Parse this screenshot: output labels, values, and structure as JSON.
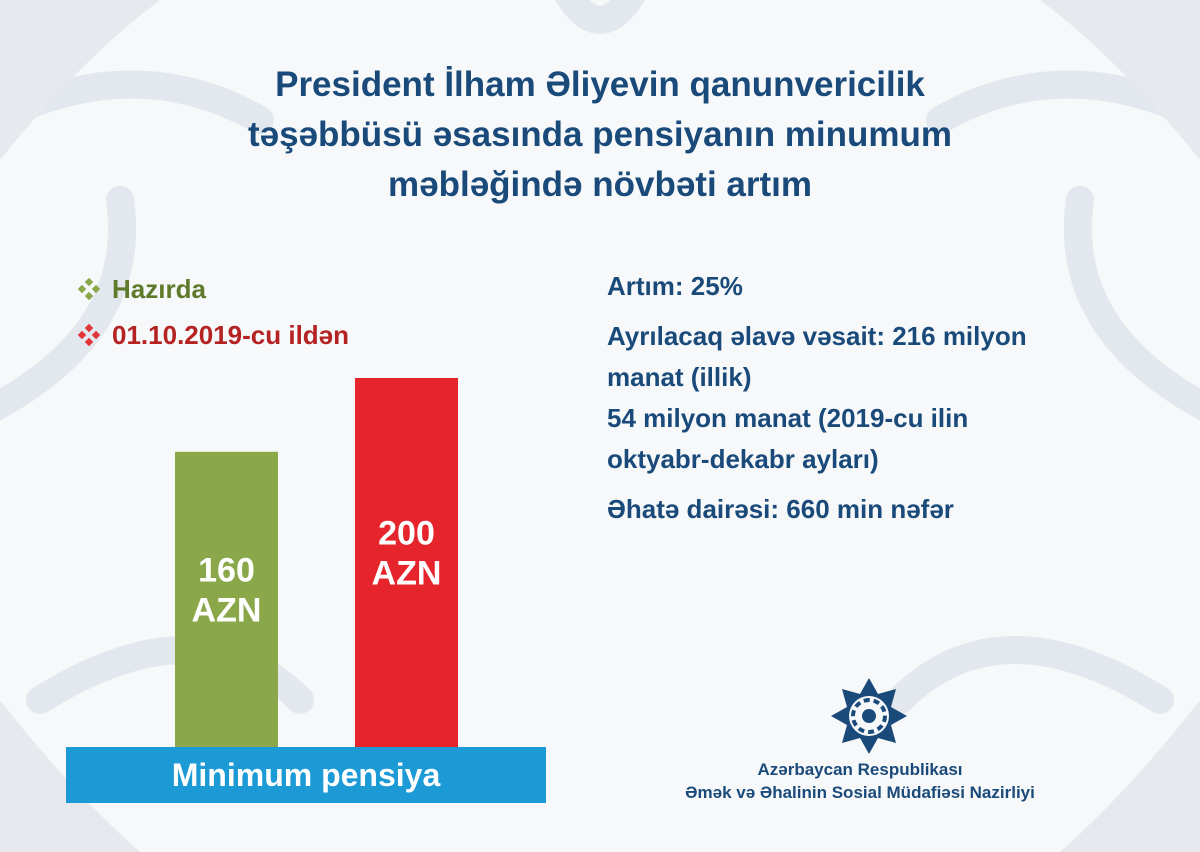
{
  "title": {
    "line1": "President İlham Əliyevin qanunvericilik",
    "line2": "təşəbbüsü  əsasında pensiyanın minumum",
    "line3": "məbləğində növbəti artım"
  },
  "legend": [
    {
      "label": "Hazırda",
      "color": "#5e7a2a",
      "bullet_color": "#8aa84a"
    },
    {
      "label": "01.10.2019-cu ildən",
      "color": "#b42222",
      "bullet_color": "#e0363a"
    }
  ],
  "chart_data": {
    "type": "bar",
    "categories": [
      "Hazırda",
      "01.10.2019-cu ildən"
    ],
    "values": [
      160,
      200
    ],
    "data_labels": [
      [
        "160",
        "AZN"
      ],
      [
        "200",
        "AZN"
      ]
    ],
    "colors": [
      "#8aa84a",
      "#e5242b"
    ],
    "xlabel": "Minimum pensiya",
    "unit": "AZN"
  },
  "info": {
    "increase": "Artım: 25%",
    "funds_line1": "Ayrılacaq əlavə vəsait: 216 milyon",
    "funds_line2": "manat (illik)",
    "funds_line3": "54 milyon manat (2019-cu ilin",
    "funds_line4": "oktyabr-dekabr ayları)",
    "coverage": "Əhatə dairəsi: 660 min nəfər"
  },
  "ministry": {
    "line1": "Azərbaycan Respublikası",
    "line2": "Əmək və Əhalinin Sosial Müdafiəsi Nazirliyi"
  },
  "icons": {
    "legend_bullet": "diamond-cluster-icon",
    "emblem": "ministry-star-emblem-icon"
  },
  "colors": {
    "text_primary": "#1a4a7a",
    "axis_band": "#1b9ad6",
    "background": "#f6f8fa"
  }
}
